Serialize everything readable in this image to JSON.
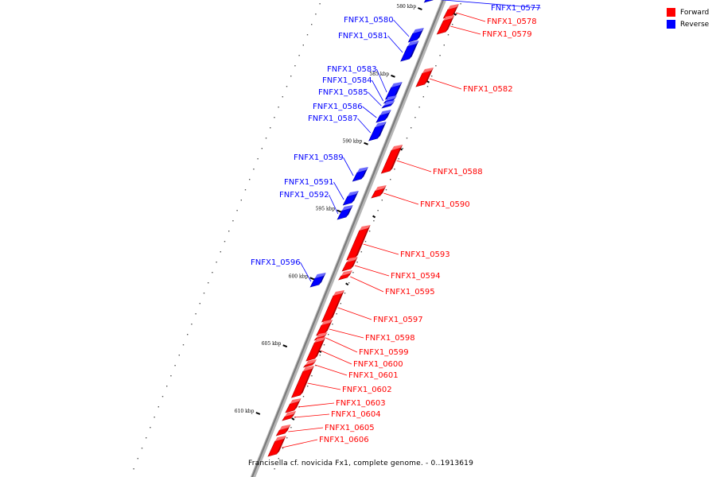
{
  "caption": "Francisella cf. novicida Fx1, complete genome. - 0..1913619",
  "legend": [
    {
      "label": "Forward",
      "color": "#ff0000"
    },
    {
      "label": "Reverse",
      "color": "#0000ff"
    }
  ],
  "backbone": {
    "color": "#888888"
  },
  "ticks": [
    {
      "label": "580 kbp",
      "kbp": 580
    },
    {
      "label": "585 kbp",
      "kbp": 585
    },
    {
      "label": "590 kbp",
      "kbp": 590
    },
    {
      "label": "595 kbp",
      "kbp": 595
    },
    {
      "label": "600 kbp",
      "kbp": 600
    },
    {
      "label": "605 kbp",
      "kbp": 605
    },
    {
      "label": "610 kbp",
      "kbp": 610
    }
  ],
  "genes": [
    {
      "name": "FNFX1_0577",
      "strand": "reverse"
    },
    {
      "name": "FNFX1_0578",
      "strand": "forward"
    },
    {
      "name": "FNFX1_0579",
      "strand": "forward"
    },
    {
      "name": "FNFX1_0580",
      "strand": "reverse"
    },
    {
      "name": "FNFX1_0581",
      "strand": "reverse"
    },
    {
      "name": "FNFX1_0582",
      "strand": "forward"
    },
    {
      "name": "FNFX1_0583",
      "strand": "reverse"
    },
    {
      "name": "FNFX1_0584",
      "strand": "reverse"
    },
    {
      "name": "FNFX1_0585",
      "strand": "reverse"
    },
    {
      "name": "FNFX1_0586",
      "strand": "reverse"
    },
    {
      "name": "FNFX1_0587",
      "strand": "reverse"
    },
    {
      "name": "FNFX1_0588",
      "strand": "forward"
    },
    {
      "name": "FNFX1_0589",
      "strand": "reverse"
    },
    {
      "name": "FNFX1_0590",
      "strand": "forward"
    },
    {
      "name": "FNFX1_0591",
      "strand": "reverse"
    },
    {
      "name": "FNFX1_0592",
      "strand": "reverse"
    },
    {
      "name": "FNFX1_0593",
      "strand": "forward"
    },
    {
      "name": "FNFX1_0594",
      "strand": "forward"
    },
    {
      "name": "FNFX1_0595",
      "strand": "forward"
    },
    {
      "name": "FNFX1_0596",
      "strand": "reverse"
    },
    {
      "name": "FNFX1_0597",
      "strand": "forward"
    },
    {
      "name": "FNFX1_0598",
      "strand": "forward"
    },
    {
      "name": "FNFX1_0599",
      "strand": "forward"
    },
    {
      "name": "FNFX1_0600",
      "strand": "forward"
    },
    {
      "name": "FNFX1_0601",
      "strand": "forward"
    },
    {
      "name": "FNFX1_0602",
      "strand": "forward"
    },
    {
      "name": "FNFX1_0603",
      "strand": "forward"
    },
    {
      "name": "FNFX1_0604",
      "strand": "forward"
    },
    {
      "name": "FNFX1_0605",
      "strand": "forward"
    },
    {
      "name": "FNFX1_0606",
      "strand": "forward"
    }
  ]
}
